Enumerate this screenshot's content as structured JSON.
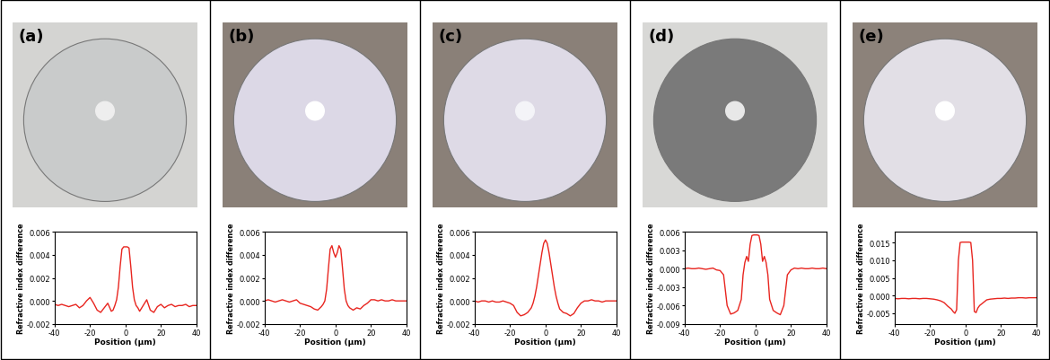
{
  "chart_data": [
    {
      "type": "line",
      "title": "(a)",
      "xlabel": "Position (μm)",
      "ylabel": "Refractive index difference",
      "x": [
        -40,
        -38,
        -36,
        -34,
        -32,
        -30,
        -28,
        -26,
        -24,
        -22,
        -20,
        -18,
        -16,
        -14,
        -12,
        -10,
        -8,
        -7,
        -6,
        -5,
        -4,
        -3,
        -2,
        -1,
        0,
        1,
        2,
        3,
        4,
        5,
        6,
        7,
        8,
        10,
        12,
        14,
        16,
        18,
        20,
        22,
        24,
        26,
        28,
        30,
        32,
        34,
        36,
        38,
        40
      ],
      "series": [
        {
          "color": "#e8251f",
          "values": [
            -0.0003,
            -0.0004,
            -0.0003,
            -0.0004,
            -0.0005,
            -0.0004,
            -0.0003,
            -0.0006,
            -0.0004,
            0.0,
            0.0003,
            -0.0002,
            -0.0008,
            -0.001,
            -0.0006,
            -0.0002,
            -0.0009,
            -0.0008,
            -0.0004,
            0.0001,
            0.0012,
            0.003,
            0.0045,
            0.0047,
            0.0047,
            0.0047,
            0.0046,
            0.003,
            0.0012,
            0.0001,
            -0.0004,
            -0.0006,
            -0.0009,
            -0.0004,
            0.0001,
            -0.0008,
            -0.001,
            -0.0005,
            -0.0003,
            -0.0006,
            -0.0004,
            -0.0003,
            -0.0005,
            -0.0004,
            -0.0004,
            -0.0003,
            -0.0005,
            -0.0004,
            -0.0004
          ]
        }
      ],
      "xlim": [
        -40,
        40
      ],
      "xticks": [
        -40,
        -20,
        0,
        20,
        40
      ],
      "ylim": [
        -0.002,
        0.006
      ],
      "yticks": [
        {
          "value": -0.002,
          "label": "-0.002"
        },
        {
          "value": 0.0,
          "label": "0.000"
        },
        {
          "value": 0.002,
          "label": "0.002"
        },
        {
          "value": 0.004,
          "label": "0.004"
        },
        {
          "value": 0.006,
          "label": "0.006"
        }
      ]
    },
    {
      "type": "line",
      "title": "(b)",
      "xlabel": "Position (μm)",
      "ylabel": "Refractive index difference",
      "x": [
        -40,
        -38,
        -36,
        -34,
        -32,
        -30,
        -28,
        -26,
        -24,
        -22,
        -20,
        -18,
        -16,
        -14,
        -12,
        -10,
        -8,
        -7,
        -6,
        -5,
        -4,
        -3,
        -2,
        -1,
        0,
        1,
        2,
        3,
        4,
        5,
        6,
        7,
        8,
        10,
        12,
        14,
        16,
        18,
        20,
        22,
        24,
        26,
        28,
        30,
        32,
        34,
        36,
        38,
        40
      ],
      "series": [
        {
          "color": "#e8251f",
          "values": [
            0.0,
            0.0001,
            0.0,
            -0.0001,
            0.0,
            0.0001,
            0.0,
            -0.0001,
            0.0,
            0.0001,
            -0.0002,
            -0.0003,
            -0.0004,
            -0.0005,
            -0.0007,
            -0.0008,
            -0.0005,
            -0.0003,
            0.0,
            0.001,
            0.0028,
            0.0045,
            0.0048,
            0.0042,
            0.0038,
            0.0042,
            0.0048,
            0.0045,
            0.0028,
            0.001,
            0.0,
            -0.0004,
            -0.0006,
            -0.0008,
            -0.0006,
            -0.0007,
            -0.0004,
            -0.0002,
            0.0001,
            0.0001,
            0.0,
            0.0001,
            0.0,
            0.0,
            0.0001,
            0.0,
            0.0,
            0.0,
            0.0
          ]
        }
      ],
      "xlim": [
        -40,
        40
      ],
      "xticks": [
        -40,
        -20,
        0,
        20,
        40
      ],
      "ylim": [
        -0.002,
        0.006
      ],
      "yticks": [
        {
          "value": -0.002,
          "label": "-0.002"
        },
        {
          "value": 0.0,
          "label": "0.000"
        },
        {
          "value": 0.002,
          "label": "0.002"
        },
        {
          "value": 0.004,
          "label": "0.004"
        },
        {
          "value": 0.006,
          "label": "0.006"
        }
      ]
    },
    {
      "type": "line",
      "title": "(c)",
      "xlabel": "Position (μm)",
      "ylabel": "Refractive index difference",
      "x": [
        -40,
        -38,
        -36,
        -34,
        -32,
        -30,
        -28,
        -26,
        -24,
        -22,
        -20,
        -18,
        -16,
        -14,
        -12,
        -10,
        -8,
        -7,
        -6,
        -5,
        -4,
        -3,
        -2,
        -1,
        0,
        1,
        2,
        3,
        4,
        5,
        6,
        7,
        8,
        10,
        12,
        14,
        16,
        18,
        20,
        22,
        24,
        26,
        28,
        30,
        32,
        34,
        36,
        38,
        40
      ],
      "series": [
        {
          "color": "#e8251f",
          "values": [
            0.0,
            -0.0001,
            0.0,
            0.0,
            -0.0001,
            0.0,
            -0.0001,
            -0.0001,
            0.0,
            -0.0001,
            -0.0002,
            -0.0004,
            -0.001,
            -0.0013,
            -0.0012,
            -0.001,
            -0.0006,
            -0.0002,
            0.0004,
            0.0012,
            0.0022,
            0.0032,
            0.0042,
            0.005,
            0.0053,
            0.005,
            0.0042,
            0.0032,
            0.0022,
            0.0012,
            0.0004,
            -0.0002,
            -0.0007,
            -0.001,
            -0.0011,
            -0.0013,
            -0.0011,
            -0.0006,
            -0.0002,
            0.0,
            0.0,
            0.0001,
            0.0,
            0.0,
            -0.0001,
            0.0,
            0.0,
            0.0,
            0.0
          ]
        }
      ],
      "xlim": [
        -40,
        40
      ],
      "xticks": [
        -40,
        -20,
        0,
        20,
        40
      ],
      "ylim": [
        -0.002,
        0.006
      ],
      "yticks": [
        {
          "value": -0.002,
          "label": "-0.002"
        },
        {
          "value": 0.0,
          "label": "0.000"
        },
        {
          "value": 0.002,
          "label": "0.002"
        },
        {
          "value": 0.004,
          "label": "0.004"
        },
        {
          "value": 0.006,
          "label": "0.006"
        }
      ]
    },
    {
      "type": "line",
      "title": "(d)",
      "xlabel": "Position (μm)",
      "ylabel": "Refractive index difference",
      "x": [
        -40,
        -38,
        -36,
        -34,
        -32,
        -30,
        -28,
        -26,
        -24,
        -22,
        -20,
        -18,
        -16,
        -14,
        -12,
        -10,
        -8,
        -7,
        -6,
        -5,
        -4,
        -3,
        -2,
        -1,
        0,
        1,
        2,
        3,
        4,
        5,
        6,
        7,
        8,
        10,
        12,
        14,
        16,
        18,
        20,
        22,
        24,
        26,
        28,
        30,
        32,
        34,
        36,
        38,
        40
      ],
      "series": [
        {
          "color": "#e8251f",
          "values": [
            0.0,
            0.0001,
            0.0,
            0.0,
            0.0001,
            0.0,
            -0.0001,
            0.0,
            0.0001,
            -0.0002,
            -0.0003,
            -0.001,
            -0.006,
            -0.0074,
            -0.0072,
            -0.0068,
            -0.005,
            -0.001,
            0.001,
            0.002,
            0.0012,
            0.004,
            0.0054,
            0.0055,
            0.0055,
            0.0055,
            0.0054,
            0.004,
            0.0012,
            0.002,
            0.001,
            -0.001,
            -0.005,
            -0.0068,
            -0.0072,
            -0.0075,
            -0.006,
            -0.001,
            -0.0002,
            0.0001,
            0.0,
            0.0001,
            0.0,
            0.0,
            0.0001,
            0.0,
            0.0,
            0.0001,
            0.0
          ]
        }
      ],
      "xlim": [
        -40,
        40
      ],
      "xticks": [
        -40,
        -20,
        0,
        20,
        40
      ],
      "ylim": [
        -0.009,
        0.006
      ],
      "yticks": [
        {
          "value": -0.009,
          "label": "-0.009"
        },
        {
          "value": -0.006,
          "label": "-0.006"
        },
        {
          "value": -0.003,
          "label": "-0.003"
        },
        {
          "value": 0.0,
          "label": "0.000"
        },
        {
          "value": 0.003,
          "label": "0.003"
        },
        {
          "value": 0.006,
          "label": "0.006"
        }
      ]
    },
    {
      "type": "line",
      "title": "(e)",
      "xlabel": "Position (μm)",
      "ylabel": "Refractive index difference",
      "x": [
        -40,
        -38,
        -36,
        -34,
        -32,
        -30,
        -28,
        -26,
        -24,
        -22,
        -20,
        -18,
        -16,
        -14,
        -12,
        -10,
        -8,
        -7,
        -6,
        -5,
        -4,
        -3,
        -2,
        -1,
        0,
        1,
        2,
        3,
        4,
        5,
        6,
        7,
        8,
        10,
        12,
        14,
        16,
        18,
        20,
        22,
        24,
        26,
        28,
        30,
        32,
        34,
        36,
        38,
        40
      ],
      "series": [
        {
          "color": "#e8251f",
          "values": [
            -0.0008,
            -0.0009,
            -0.0008,
            -0.0008,
            -0.0009,
            -0.0008,
            -0.0008,
            -0.0009,
            -0.0008,
            -0.0008,
            -0.0009,
            -0.001,
            -0.0012,
            -0.0015,
            -0.002,
            -0.003,
            -0.0038,
            -0.0045,
            -0.005,
            -0.004,
            0.01,
            0.015,
            0.0151,
            0.0151,
            0.0151,
            0.0151,
            0.0151,
            0.015,
            0.01,
            -0.0045,
            -0.0048,
            -0.0035,
            -0.0028,
            -0.002,
            -0.0012,
            -0.001,
            -0.0009,
            -0.0008,
            -0.0008,
            -0.0007,
            -0.0008,
            -0.0007,
            -0.0007,
            -0.0006,
            -0.0006,
            -0.0007,
            -0.0006,
            -0.0006,
            -0.0006
          ]
        }
      ],
      "xlim": [
        -40,
        40
      ],
      "xticks": [
        -40,
        -20,
        0,
        20,
        40
      ],
      "ylim": [
        -0.008,
        0.018
      ],
      "yticks": [
        {
          "value": -0.005,
          "label": "-0.005"
        },
        {
          "value": 0.0,
          "label": "0.000"
        },
        {
          "value": 0.005,
          "label": "0.005"
        },
        {
          "value": 0.01,
          "label": "0.010"
        },
        {
          "value": 0.015,
          "label": "0.015"
        }
      ]
    }
  ]
}
